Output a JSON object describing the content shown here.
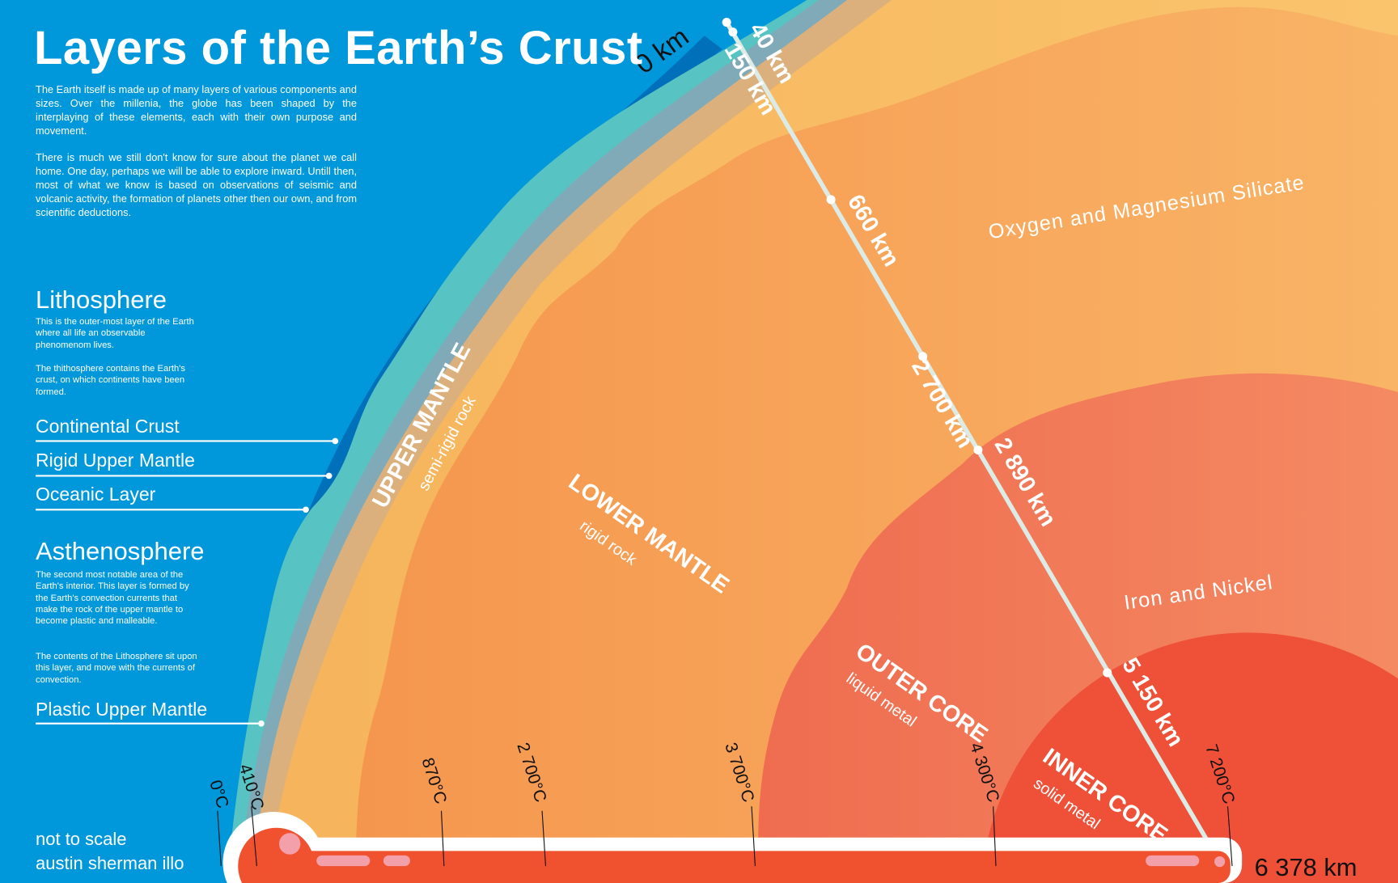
{
  "title": "Layers of the Earth’s Crust",
  "intro": [
    "The Earth itself is made up of many layers of various components and sizes. Over the millenia, the globe has been shaped by the interplaying of these elements, each with their own purpose and movement.",
    "There is much we still don't know for sure about the planet we call home. One day, perhaps we will be able to explore inward. Untill then, most of what we know is based on observations of seismic and volcanic activity, the formation of planets other then our own, and from scientific deductions."
  ],
  "lithosphere": {
    "heading": "Lithosphere",
    "paragraphs": [
      "This is the outer-most layer of the Earth where all life an observable phenomenom lives.",
      "The thithosphere contains the Earth's crust, on which continents have been formed."
    ],
    "layers": [
      "Continental Crust",
      "Rigid Upper Mantle",
      "Oceanic Layer"
    ]
  },
  "asthenosphere": {
    "heading": "Asthenosphere",
    "paragraphs": [
      "The second most notable area of the Earth's interior. This layer is formed by the Earth's convection currents that make the rock of the upper mantle to become plastic and malleable.",
      "The contents of the Lithosphere sit upon this layer, and move with the currents of convection."
    ],
    "layers": [
      "Plastic Upper Mantle"
    ]
  },
  "footer": {
    "note": "not to scale",
    "credit": "austin sherman illo"
  },
  "depths": {
    "surface": "0 km",
    "d40": "40 km",
    "d150": "150 km",
    "d660": "660 km",
    "d2700": "2 700 km",
    "d2890": "2 890 km",
    "d5150": "5 150 km",
    "center": "6 378 km"
  },
  "regions": {
    "upper_mantle": {
      "name": "UPPER MANTLE",
      "desc": "semi-rigid rock"
    },
    "lower_mantle": {
      "name": "LOWER MANTLE",
      "desc": "rigid rock"
    },
    "outer_core": {
      "name": "OUTER CORE",
      "desc": "liquid metal"
    },
    "inner_core": {
      "name": "INNER CORE",
      "desc": "solid metal"
    }
  },
  "composition": {
    "mantle": "Oxygen and Magnesium Silicate",
    "core": "Iron and Nickel"
  },
  "temperatures": [
    "0°C",
    "410°C",
    "870°C",
    "2 700°C",
    "3 700°C",
    "4 300°C",
    "7 200°C"
  ],
  "colors": {
    "background": "#0098db",
    "ocean_dark": "#0070bb",
    "continental_crust": "#58c3c3",
    "rigid_upper_mantle": "#80aab8",
    "plastic_upper_mantle": "#dcb07c",
    "upper_mantle": "#f8bc62",
    "lower_mantle": "#f69a52",
    "outer_core": "#f07a5c",
    "inner_core": "#ef5038",
    "thermometer": "#f0512e"
  }
}
